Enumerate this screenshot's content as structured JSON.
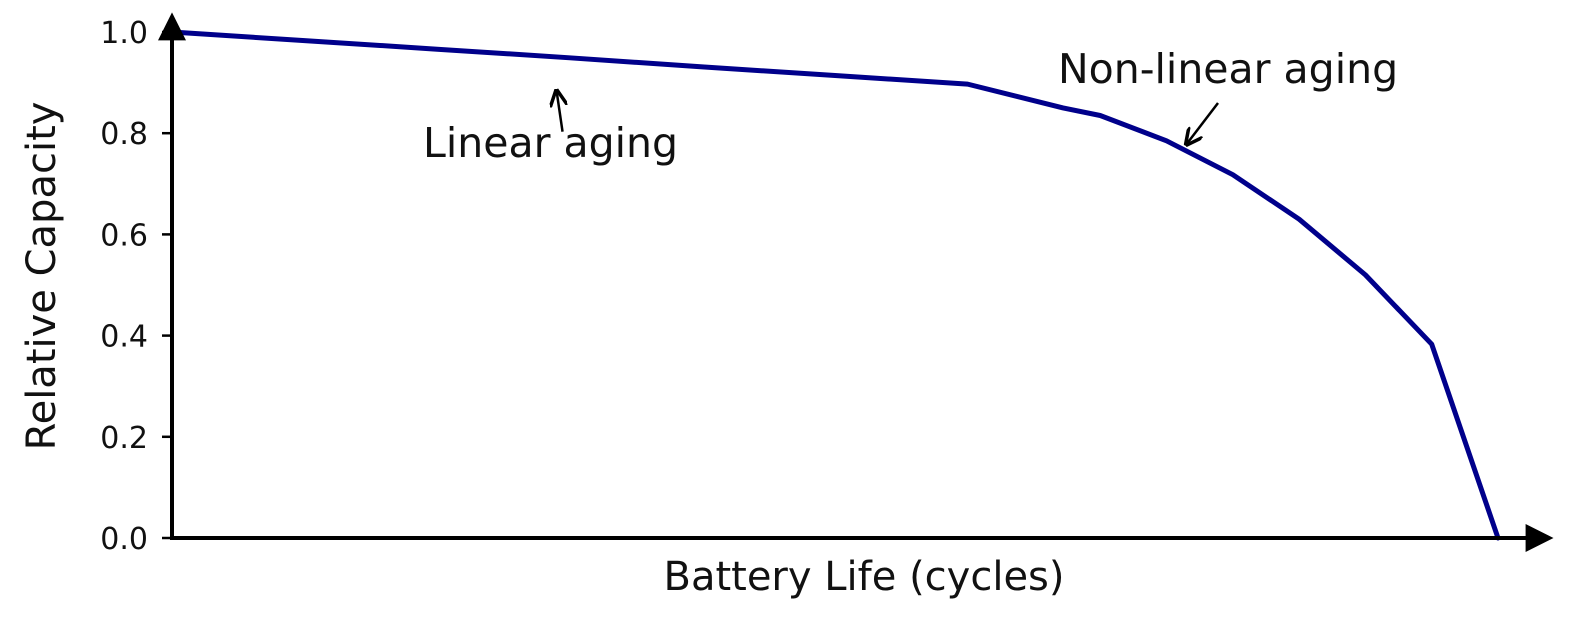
{
  "chart_data": {
    "type": "line",
    "xlabel": "Battery Life (cycles)",
    "ylabel": "Relative Capacity",
    "ylim": [
      0,
      1.0
    ],
    "xlim": [
      0,
      1
    ],
    "x_ticks_shown": false,
    "y_ticks": [
      "0.0",
      "0.2",
      "0.4",
      "0.6",
      "0.8",
      "1.0"
    ],
    "grid": false,
    "series": [
      {
        "color": "#00008b",
        "points": [
          [
            0.0,
            1.0
          ],
          [
            0.1,
            0.983
          ],
          [
            0.2,
            0.966
          ],
          [
            0.3,
            0.949
          ],
          [
            0.4,
            0.931
          ],
          [
            0.5,
            0.914
          ],
          [
            0.6,
            0.897
          ],
          [
            0.672,
            0.85
          ],
          [
            0.7,
            0.835
          ],
          [
            0.75,
            0.785
          ],
          [
            0.8,
            0.718
          ],
          [
            0.85,
            0.63
          ],
          [
            0.9,
            0.52
          ],
          [
            0.95,
            0.383
          ],
          [
            1.0,
            0.0
          ]
        ]
      }
    ],
    "annotations": [
      {
        "text": "Linear aging",
        "point": [
          0.29,
          0.89
        ]
      },
      {
        "text": "Non-linear aging",
        "point": [
          0.765,
          0.77
        ]
      }
    ]
  }
}
